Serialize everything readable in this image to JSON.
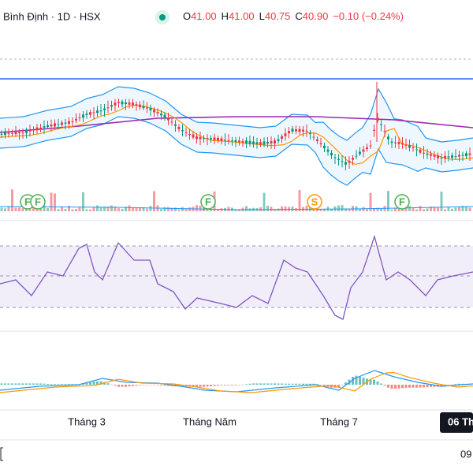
{
  "header": {
    "symbol": "Bình Định · 1D · HSX",
    "ohlc": [
      {
        "key": "O",
        "value": "41.00"
      },
      {
        "key": "H",
        "value": "41.00"
      },
      {
        "key": "L",
        "value": "40.75"
      },
      {
        "key": "C",
        "value": "40.90"
      }
    ],
    "change": "−0.10 (−0.24%)"
  },
  "markers": [
    "F",
    "F",
    "F",
    "S",
    "F"
  ],
  "x_axis": {
    "labels": [
      "Tháng 3",
      "Tháng Năm",
      "Tháng 7"
    ],
    "crosshair_label": "06 Th"
  },
  "time_axis": {
    "label": "09"
  }
}
